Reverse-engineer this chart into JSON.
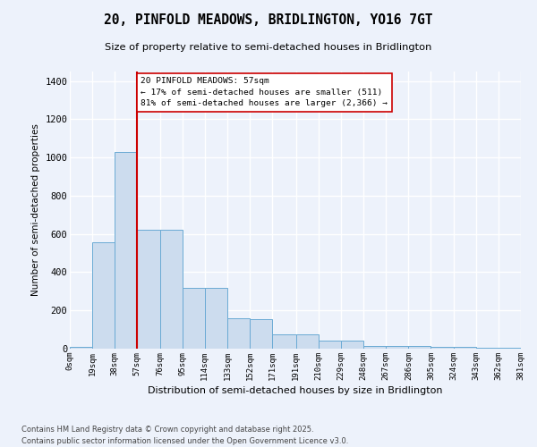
{
  "title_line1": "20, PINFOLD MEADOWS, BRIDLINGTON, YO16 7GT",
  "title_line2": "Size of property relative to semi-detached houses in Bridlington",
  "xlabel": "Distribution of semi-detached houses by size in Bridlington",
  "ylabel": "Number of semi-detached properties",
  "footnote": "Contains HM Land Registry data © Crown copyright and database right 2025.\nContains public sector information licensed under the Open Government Licence v3.0.",
  "annotation_title": "20 PINFOLD MEADOWS: 57sqm",
  "annotation_line2": "← 17% of semi-detached houses are smaller (511)",
  "annotation_line3": "81% of semi-detached houses are larger (2,366) →",
  "property_size": 57,
  "bar_color": "#ccdcee",
  "bar_edge_color": "#6aaad4",
  "red_line_color": "#cc0000",
  "bg_color": "#edf2fb",
  "grid_color": "#ffffff",
  "bins": [
    0,
    19,
    38,
    57,
    76,
    95,
    114,
    133,
    152,
    171,
    191,
    210,
    229,
    248,
    267,
    286,
    305,
    324,
    343,
    362,
    381
  ],
  "bin_labels": [
    "0sqm",
    "19sqm",
    "38sqm",
    "57sqm",
    "76sqm",
    "95sqm",
    "114sqm",
    "133sqm",
    "152sqm",
    "171sqm",
    "191sqm",
    "210sqm",
    "229sqm",
    "248sqm",
    "267sqm",
    "286sqm",
    "305sqm",
    "324sqm",
    "343sqm",
    "362sqm",
    "381sqm"
  ],
  "counts": [
    10,
    558,
    1030,
    620,
    620,
    318,
    318,
    160,
    155,
    73,
    73,
    40,
    40,
    16,
    16,
    16,
    8,
    8,
    5,
    5
  ],
  "ylim": [
    0,
    1450
  ],
  "yticks": [
    0,
    200,
    400,
    600,
    800,
    1000,
    1200,
    1400
  ]
}
